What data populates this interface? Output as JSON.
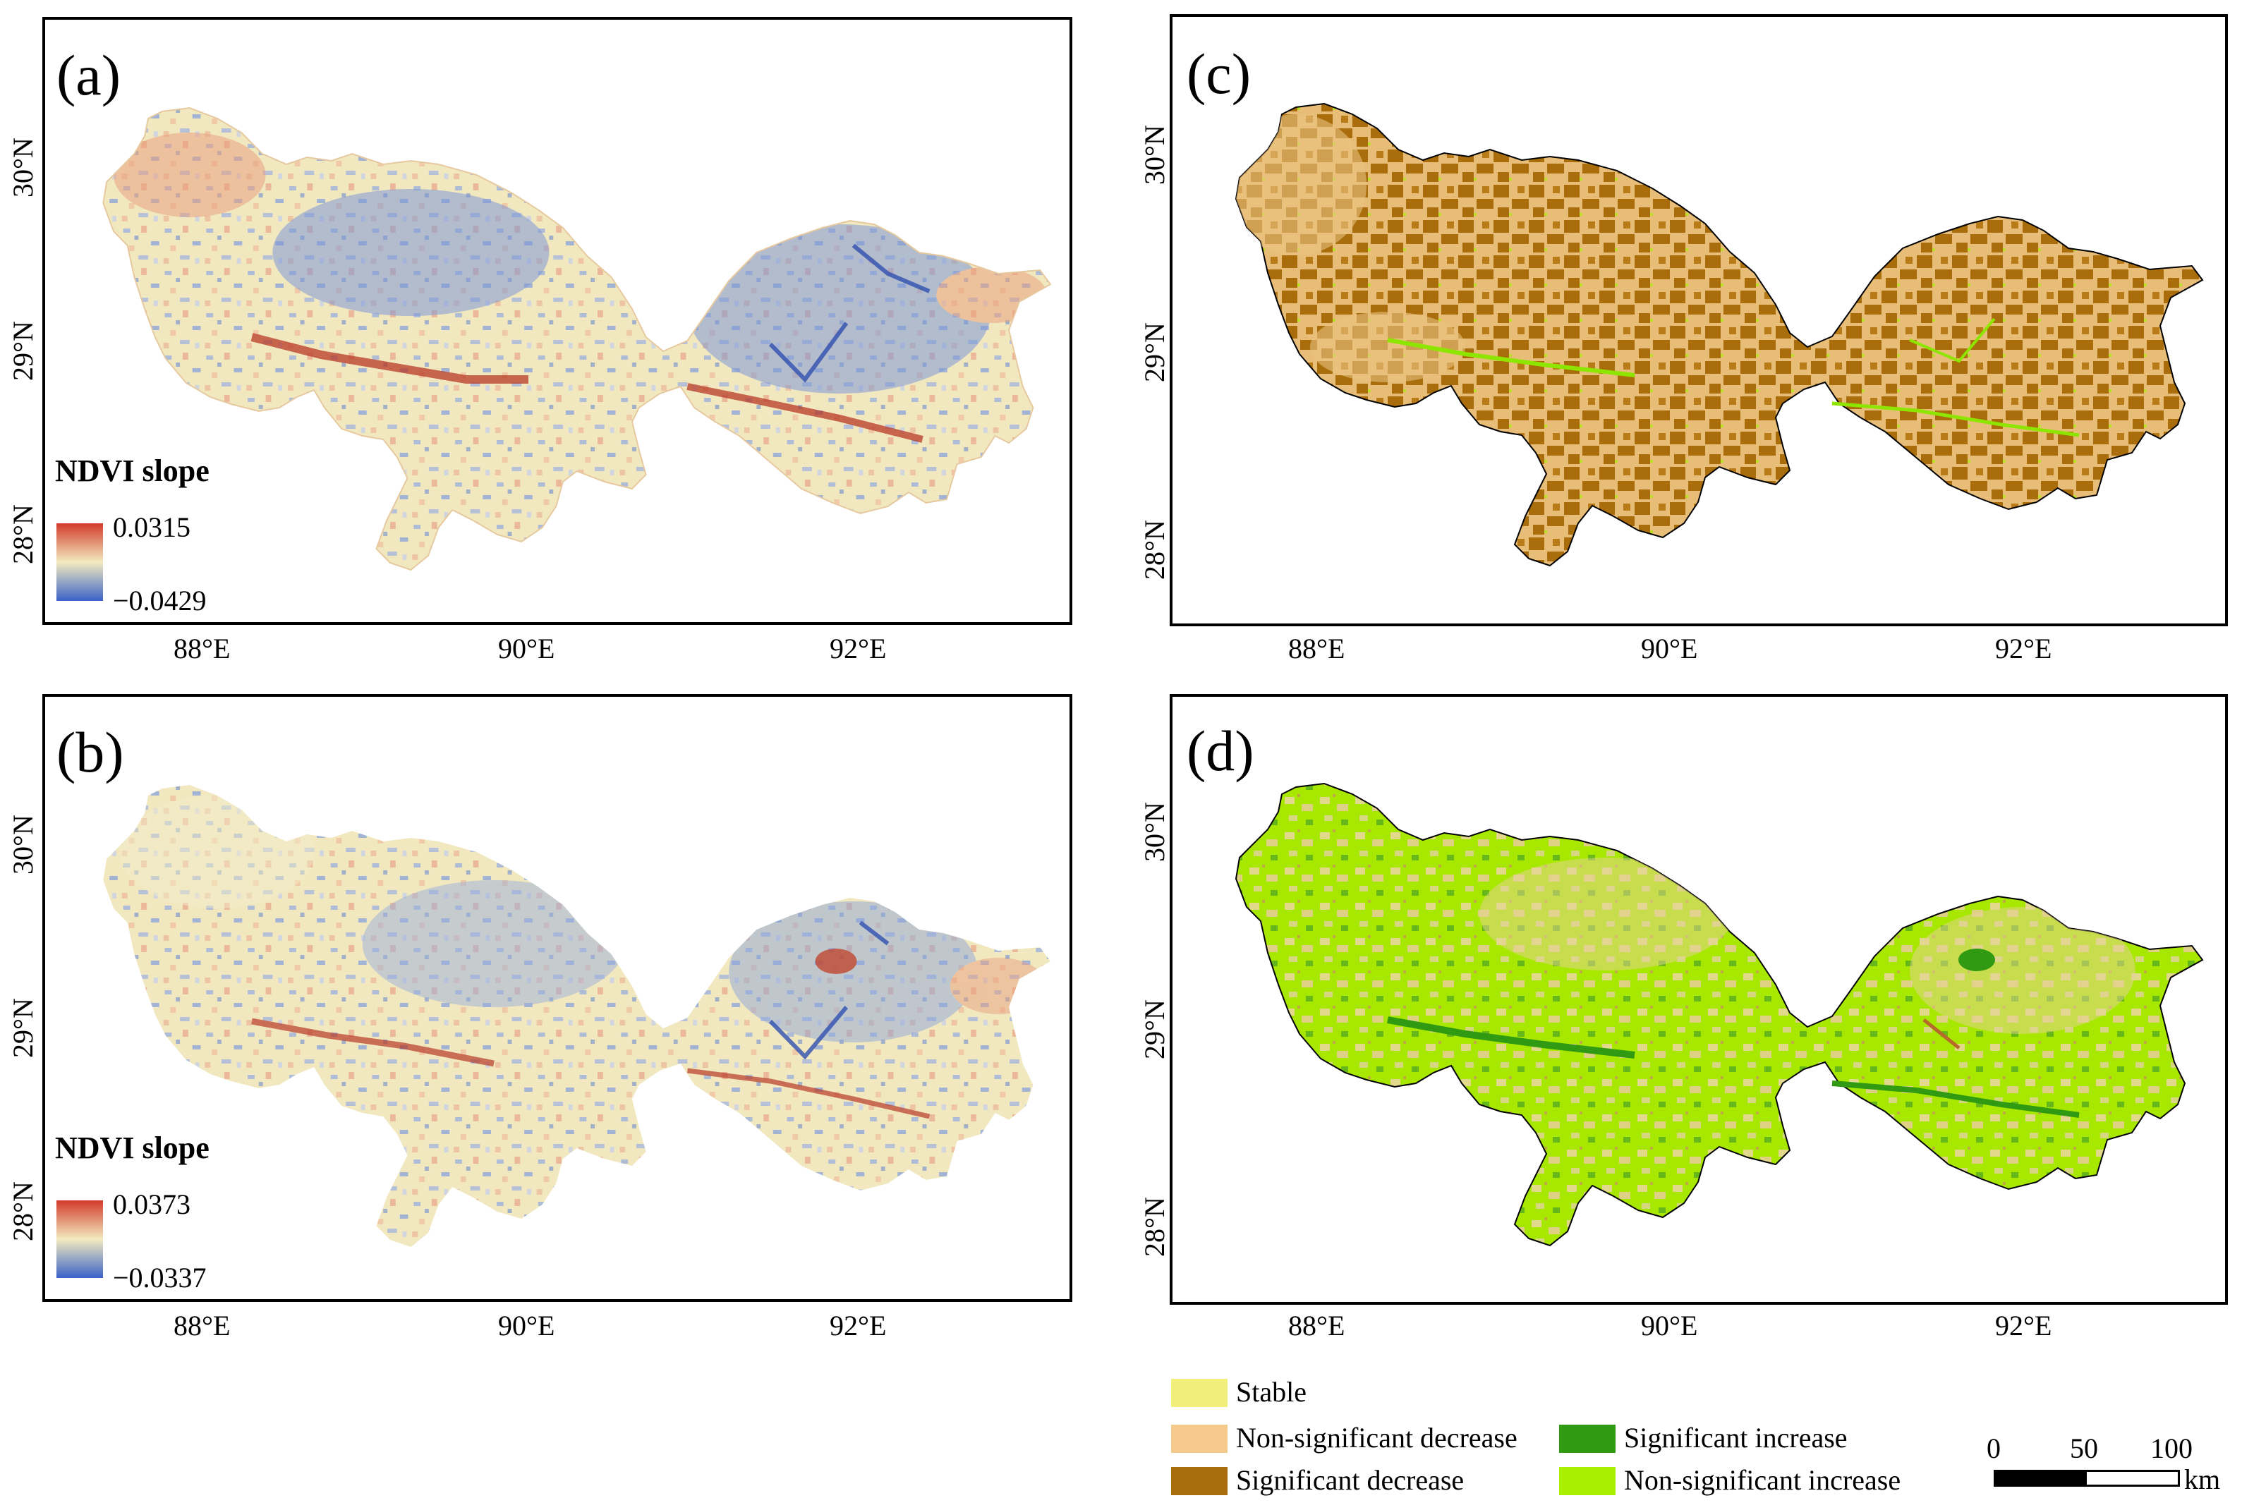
{
  "panels": {
    "a": {
      "label": "(a)",
      "legend_title": "NDVI slope",
      "max": "0.0315",
      "min": "−0.0429",
      "lat_labels": [
        "30°N",
        "29°N",
        "28°N"
      ],
      "lon_labels": [
        "88°E",
        "90°E",
        "92°E"
      ]
    },
    "b": {
      "label": "(b)",
      "legend_title": "NDVI slope",
      "max": "0.0373",
      "min": "−0.0337",
      "lat_labels": [
        "30°N",
        "29°N",
        "28°N"
      ],
      "lon_labels": [
        "88°E",
        "90°E",
        "92°E"
      ]
    },
    "c": {
      "label": "(c)",
      "lat_labels": [
        "30°N",
        "29°N",
        "28°N"
      ],
      "lon_labels": [
        "88°E",
        "90°E",
        "92°E"
      ]
    },
    "d": {
      "label": "(d)",
      "lat_labels": [
        "30°N",
        "29°N",
        "28°N"
      ],
      "lon_labels": [
        "88°E",
        "90°E",
        "92°E"
      ]
    }
  },
  "trend_legend": {
    "stable": "Stable",
    "nonsig_decrease": "Non-significant decrease",
    "sig_decrease": "Significant decrease",
    "sig_increase": "Significant increase",
    "nonsig_increase": "Non-significant increase"
  },
  "scale_bar": {
    "ticks": [
      "0",
      "50",
      "100"
    ],
    "unit": "km"
  },
  "colors": {
    "stable": "#f2ee7a",
    "nonsig_decrease": "#f5c98c",
    "sig_decrease": "#a96d0b",
    "sig_increase": "#2f9a12",
    "nonsig_increase": "#a8f000",
    "slope_high": "#d23b2a",
    "slope_mid": "#f3ebbf",
    "slope_low": "#3a62c8"
  }
}
